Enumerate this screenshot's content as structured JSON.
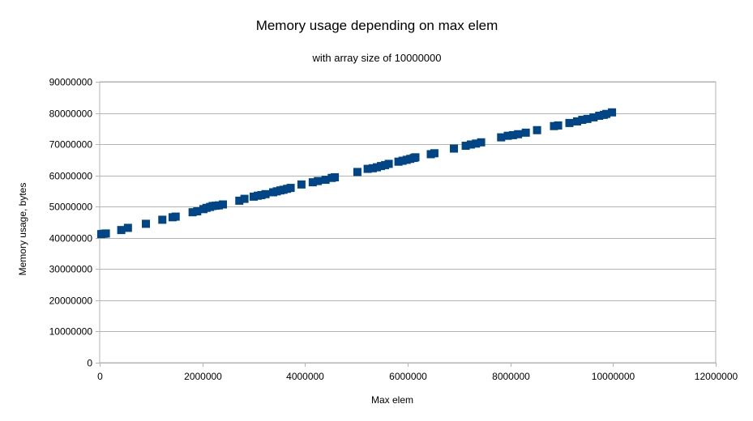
{
  "chart_data": {
    "type": "scatter",
    "title": "Memory usage depending on max elem",
    "subtitle": "with array size of 10000000",
    "xlabel": "Max elem",
    "ylabel": "Memory usage, bytes",
    "xlim": [
      0,
      12000000
    ],
    "ylim": [
      0,
      90000000
    ],
    "xticks": [
      0,
      2000000,
      4000000,
      6000000,
      8000000,
      10000000,
      12000000
    ],
    "yticks": [
      0,
      10000000,
      20000000,
      30000000,
      40000000,
      50000000,
      60000000,
      70000000,
      80000000,
      90000000
    ],
    "grid": true,
    "marker": "square",
    "marker_color": "#004586",
    "points": [
      [
        30000,
        41200000
      ],
      [
        80000,
        41300000
      ],
      [
        120000,
        41400000
      ],
      [
        420000,
        42500000
      ],
      [
        550000,
        43200000
      ],
      [
        900000,
        44500000
      ],
      [
        1220000,
        45800000
      ],
      [
        1420000,
        46600000
      ],
      [
        1480000,
        46800000
      ],
      [
        1810000,
        48200000
      ],
      [
        1900000,
        48500000
      ],
      [
        2020000,
        49200000
      ],
      [
        2080000,
        49600000
      ],
      [
        2150000,
        49900000
      ],
      [
        2200000,
        50200000
      ],
      [
        2260000,
        50300000
      ],
      [
        2320000,
        50400000
      ],
      [
        2400000,
        50700000
      ],
      [
        2720000,
        51900000
      ],
      [
        2820000,
        52500000
      ],
      [
        3000000,
        53200000
      ],
      [
        3080000,
        53500000
      ],
      [
        3150000,
        53700000
      ],
      [
        3230000,
        54000000
      ],
      [
        3380000,
        54600000
      ],
      [
        3450000,
        54900000
      ],
      [
        3520000,
        55200000
      ],
      [
        3580000,
        55400000
      ],
      [
        3650000,
        55700000
      ],
      [
        3720000,
        56000000
      ],
      [
        3930000,
        57100000
      ],
      [
        4150000,
        57800000
      ],
      [
        4250000,
        58200000
      ],
      [
        4400000,
        58600000
      ],
      [
        4520000,
        59200000
      ],
      [
        4580000,
        59400000
      ],
      [
        5020000,
        61100000
      ],
      [
        5220000,
        62100000
      ],
      [
        5320000,
        62300000
      ],
      [
        5400000,
        62600000
      ],
      [
        5480000,
        63000000
      ],
      [
        5560000,
        63300000
      ],
      [
        5630000,
        63700000
      ],
      [
        5820000,
        64400000
      ],
      [
        5900000,
        64700000
      ],
      [
        5980000,
        65000000
      ],
      [
        6050000,
        65300000
      ],
      [
        6120000,
        65600000
      ],
      [
        6150000,
        65800000
      ],
      [
        6450000,
        66800000
      ],
      [
        6520000,
        67100000
      ],
      [
        6900000,
        68600000
      ],
      [
        7130000,
        69500000
      ],
      [
        7230000,
        69900000
      ],
      [
        7330000,
        70200000
      ],
      [
        7430000,
        70600000
      ],
      [
        7820000,
        72200000
      ],
      [
        7950000,
        72700000
      ],
      [
        8050000,
        72900000
      ],
      [
        8150000,
        73200000
      ],
      [
        8300000,
        73700000
      ],
      [
        8520000,
        74500000
      ],
      [
        8850000,
        75800000
      ],
      [
        8930000,
        76000000
      ],
      [
        9150000,
        76800000
      ],
      [
        9300000,
        77300000
      ],
      [
        9400000,
        77800000
      ],
      [
        9500000,
        78100000
      ],
      [
        9620000,
        78600000
      ],
      [
        9730000,
        79100000
      ],
      [
        9820000,
        79400000
      ],
      [
        9870000,
        79700000
      ],
      [
        9980000,
        80200000
      ]
    ]
  }
}
